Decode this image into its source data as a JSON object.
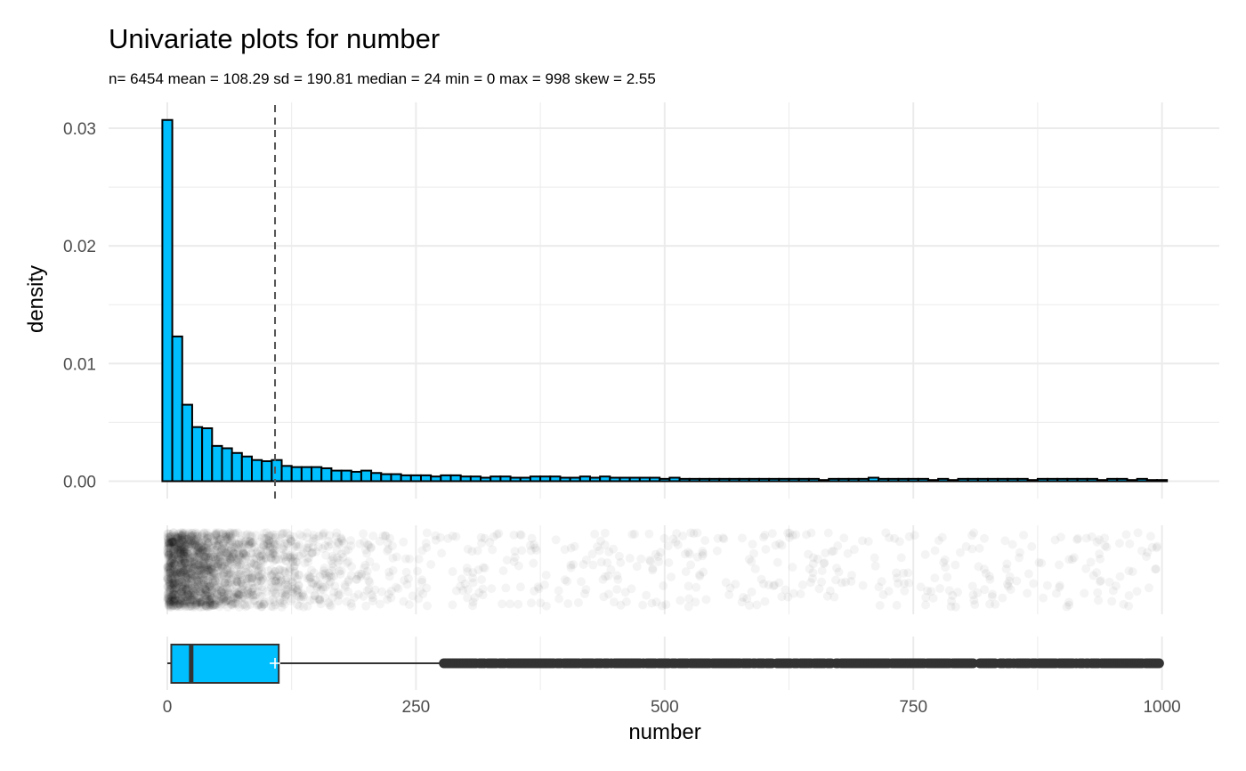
{
  "chart_data": {
    "type": "histogram",
    "title": "Univariate plots for number",
    "subtitle": "n= 6454  mean = 108.29  sd = 190.81  median = 24  min = 0  max = 998  skew = 2.55",
    "xlabel": "number",
    "ylabel": "density",
    "xlim": [
      -10,
      1010
    ],
    "ylim": [
      0,
      0.0315
    ],
    "x_ticks": [
      0,
      250,
      500,
      750,
      1000
    ],
    "x_tick_labels": [
      "0",
      "250",
      "500",
      "750",
      "1000"
    ],
    "y_ticks": [
      0,
      0.01,
      0.02,
      0.03
    ],
    "y_tick_labels": [
      "0.00",
      "0.01",
      "0.02",
      "0.03"
    ],
    "grid": true,
    "colors": {
      "bar_fill": "#00BFFF",
      "bar_stroke": "#000000",
      "mean_line": "#555555",
      "grid": "#ebebeb",
      "jitter_point": "#000000",
      "box_fill": "#00BFFF",
      "outlier": "#333333"
    },
    "histogram": {
      "bin_width": 10,
      "bins_start": -5,
      "density": [
        0.0307,
        0.0123,
        0.0065,
        0.0046,
        0.0045,
        0.003,
        0.0028,
        0.0024,
        0.0021,
        0.0018,
        0.0017,
        0.0018,
        0.0013,
        0.0012,
        0.0012,
        0.0012,
        0.0011,
        0.0009,
        0.0009,
        0.0008,
        0.0009,
        0.0007,
        0.0006,
        0.0006,
        0.0005,
        0.0005,
        0.0005,
        0.0004,
        0.0005,
        0.0005,
        0.0004,
        0.0004,
        0.0003,
        0.0004,
        0.0004,
        0.0003,
        0.0003,
        0.0004,
        0.0004,
        0.0004,
        0.0003,
        0.0003,
        0.0004,
        0.0003,
        0.0004,
        0.0003,
        0.0003,
        0.0003,
        0.0003,
        0.0003,
        0.0002,
        0.0003,
        0.0002,
        0.0002,
        0.0002,
        0.0002,
        0.0002,
        0.0002,
        0.0002,
        0.0002,
        0.0002,
        0.0002,
        0.0002,
        0.0002,
        0.0002,
        0.0002,
        0.0001,
        0.0002,
        0.0002,
        0.0002,
        0.0002,
        0.0003,
        0.0002,
        0.0002,
        0.0002,
        0.0002,
        0.0002,
        0.0001,
        0.0002,
        0.0001,
        0.0002,
        0.0002,
        0.0002,
        0.0002,
        0.0002,
        0.0002,
        0.0002,
        0.0001,
        0.0002,
        0.0002,
        0.0002,
        0.0002,
        0.0002,
        0.0002,
        0.0001,
        0.0002,
        0.0002,
        0.0001,
        0.0002,
        0.0001,
        0.0001
      ]
    },
    "mean_line_x": 108.29,
    "boxplot": {
      "min": 0,
      "q1": 4,
      "median": 24,
      "q3": 112,
      "whisker_high": 276,
      "mean": 108.29,
      "outlier_range": [
        278,
        998
      ]
    }
  }
}
